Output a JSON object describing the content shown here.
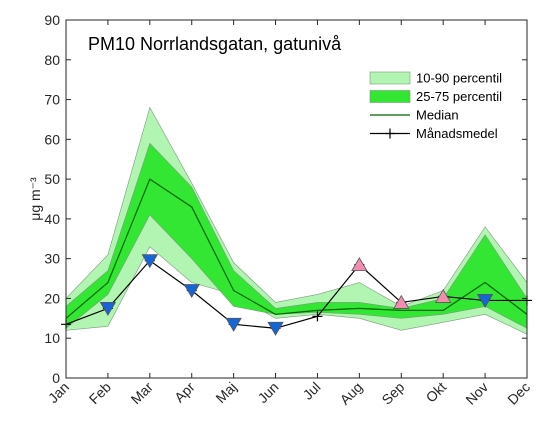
{
  "chart_data": {
    "type": "area",
    "title": "PM10 Norrlandsgatan, gatunivå",
    "ylabel": "μg m⁻³",
    "xlabel": "",
    "categories": [
      "Jan",
      "Feb",
      "Mar",
      "Apr",
      "Maj",
      "Jun",
      "Jul",
      "Aug",
      "Sep",
      "Okt",
      "Nov",
      "Dec"
    ],
    "ylim": [
      0,
      90
    ],
    "yticks": [
      0,
      10,
      20,
      30,
      40,
      50,
      60,
      70,
      80,
      90
    ],
    "grid": false,
    "legend_position": "top-right",
    "series": [
      {
        "name": "10-90 percentil",
        "kind": "band",
        "color": "#b2f5b2",
        "lower": [
          12,
          13,
          33,
          24,
          21,
          15,
          16,
          15,
          12,
          14,
          16,
          11
        ],
        "upper": [
          20,
          31,
          68,
          49,
          29,
          19,
          21,
          24,
          18,
          22,
          38,
          24
        ]
      },
      {
        "name": "25-75 percentil",
        "kind": "band",
        "color": "#33e633",
        "lower": [
          12.5,
          21,
          41,
          30,
          18,
          16,
          16.5,
          16,
          15,
          16,
          18,
          12.5
        ],
        "upper": [
          18,
          27,
          59,
          48,
          27,
          17.5,
          19,
          19,
          17.5,
          20,
          36,
          20
        ]
      },
      {
        "name": "Median",
        "kind": "line",
        "color": "#006600",
        "values": [
          15,
          24,
          50,
          43,
          22,
          16,
          17,
          17.5,
          17,
          17,
          24,
          16
        ]
      },
      {
        "name": "Månadsmedel",
        "kind": "line-markers",
        "color": "#000000",
        "values": [
          13.5,
          17.5,
          29.5,
          22,
          13.5,
          12.5,
          15.5,
          28.5,
          19,
          20.5,
          19.5,
          19.5
        ]
      }
    ],
    "triangle_markers": [
      {
        "category": "Feb",
        "value": 17.5,
        "direction": "down",
        "color": "#1565d8"
      },
      {
        "category": "Mar",
        "value": 29.5,
        "direction": "down",
        "color": "#1565d8"
      },
      {
        "category": "Apr",
        "value": 22,
        "direction": "down",
        "color": "#1565d8"
      },
      {
        "category": "Maj",
        "value": 13.5,
        "direction": "down",
        "color": "#1565d8"
      },
      {
        "category": "Jun",
        "value": 12.5,
        "direction": "down",
        "color": "#1565d8"
      },
      {
        "category": "Aug",
        "value": 28.5,
        "direction": "up",
        "color": "#f28cb1"
      },
      {
        "category": "Sep",
        "value": 19,
        "direction": "up",
        "color": "#f28cb1"
      },
      {
        "category": "Okt",
        "value": 20.5,
        "direction": "up",
        "color": "#f28cb1"
      },
      {
        "category": "Nov",
        "value": 19.5,
        "direction": "down",
        "color": "#1565d8"
      }
    ]
  }
}
